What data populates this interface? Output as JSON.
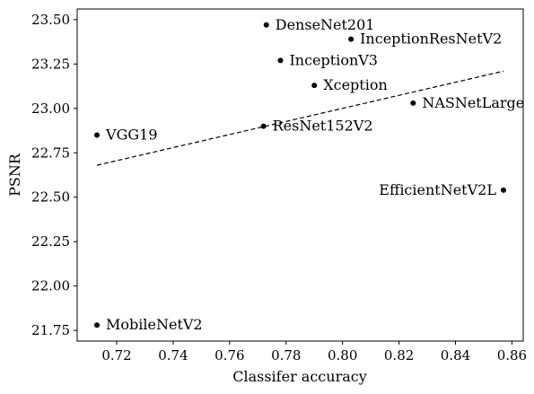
{
  "chart_data": {
    "type": "scatter",
    "title": "",
    "xlabel": "Classifer accuracy",
    "ylabel": "PSNR",
    "xlim": [
      0.706,
      0.864
    ],
    "ylim": [
      21.69,
      23.56
    ],
    "xticks": [
      0.72,
      0.74,
      0.76,
      0.78,
      0.8,
      0.82,
      0.84,
      0.86
    ],
    "xtick_labels": [
      "0.72",
      "0.74",
      "0.76",
      "0.78",
      "0.80",
      "0.82",
      "0.84",
      "0.86"
    ],
    "yticks": [
      21.75,
      22.0,
      22.25,
      22.5,
      22.75,
      23.0,
      23.25,
      23.5
    ],
    "ytick_labels": [
      "21.75",
      "22.00",
      "22.25",
      "22.50",
      "22.75",
      "23.00",
      "23.25",
      "23.50"
    ],
    "grid": false,
    "points": [
      {
        "label": "DenseNet201",
        "x": 0.773,
        "y": 23.47,
        "label_side": "right"
      },
      {
        "label": "InceptionResNetV2",
        "x": 0.803,
        "y": 23.39,
        "label_side": "right"
      },
      {
        "label": "InceptionV3",
        "x": 0.778,
        "y": 23.27,
        "label_side": "right"
      },
      {
        "label": "Xception",
        "x": 0.79,
        "y": 23.13,
        "label_side": "right"
      },
      {
        "label": "NASNetLarge",
        "x": 0.825,
        "y": 23.03,
        "label_side": "right"
      },
      {
        "label": "ResNet152V2",
        "x": 0.772,
        "y": 22.9,
        "label_side": "right"
      },
      {
        "label": "VGG19",
        "x": 0.713,
        "y": 22.85,
        "label_side": "right"
      },
      {
        "label": "EfficientNetV2L",
        "x": 0.857,
        "y": 22.54,
        "label_side": "left"
      },
      {
        "label": "MobileNetV2",
        "x": 0.713,
        "y": 21.78,
        "label_side": "right"
      }
    ],
    "trend_line": {
      "style": "dashed",
      "x": [
        0.713,
        0.857
      ],
      "y": [
        22.68,
        23.21
      ]
    }
  }
}
